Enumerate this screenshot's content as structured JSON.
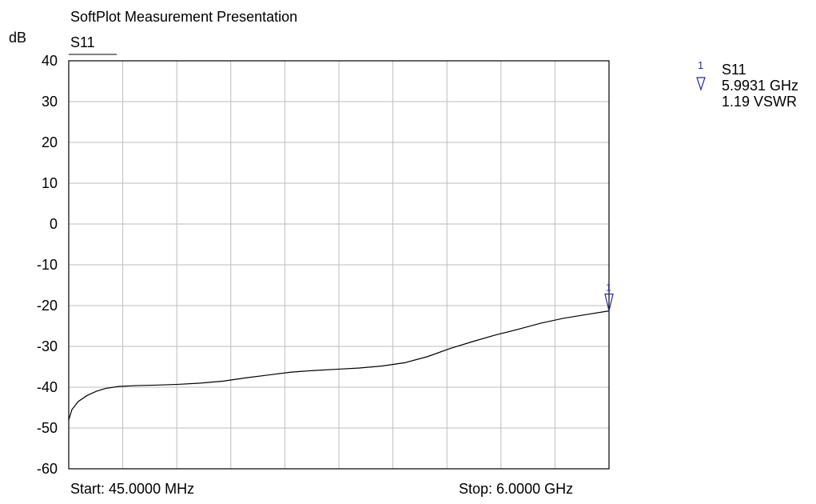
{
  "title": "SoftPlot Measurement Presentation",
  "trace_label": "S11",
  "y_unit": "dB",
  "start_label": "Start: 45.0000 MHz",
  "stop_label": "Stop: 6.0000 GHz",
  "marker": {
    "number": "1",
    "trace": "S11",
    "frequency": "5.9931 GHz",
    "value": "1.19 VSWR",
    "color": "#2a2a9a"
  },
  "chart_data": {
    "type": "line",
    "title": "SoftPlot Measurement Presentation",
    "ylabel": "dB",
    "xlabel": "",
    "xlim_mhz": [
      45,
      6000
    ],
    "ylim": [
      -60,
      40
    ],
    "yticks": [
      40,
      30,
      20,
      10,
      0,
      -10,
      -20,
      -30,
      -40,
      -50,
      -60
    ],
    "x_divisions": 10,
    "grid": true,
    "trace_color": "#000000",
    "series": [
      {
        "name": "S11",
        "x_mhz": [
          45,
          80,
          150,
          250,
          350,
          450,
          600,
          800,
          1000,
          1250,
          1500,
          1750,
          2000,
          2250,
          2500,
          2750,
          3000,
          3250,
          3500,
          3750,
          4000,
          4250,
          4500,
          4750,
          5000,
          5250,
          5500,
          5750,
          6000
        ],
        "values": [
          -48.0,
          -45.5,
          -43.5,
          -42.0,
          -41.0,
          -40.3,
          -39.8,
          -39.6,
          -39.5,
          -39.3,
          -39.0,
          -38.5,
          -37.7,
          -37.0,
          -36.3,
          -35.9,
          -35.6,
          -35.3,
          -34.8,
          -34.0,
          -32.5,
          -30.5,
          -28.8,
          -27.2,
          -25.8,
          -24.3,
          -23.1,
          -22.2,
          -21.3
        ]
      }
    ]
  }
}
